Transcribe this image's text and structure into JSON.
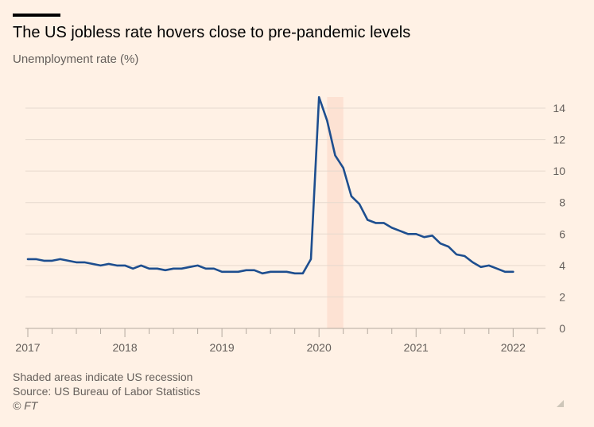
{
  "header": {
    "title": "The US jobless rate hovers close to pre-pandemic levels",
    "subtitle": "Unemployment rate (%)"
  },
  "footer": {
    "note": "Shaded areas indicate US recession",
    "source": "Source: US Bureau of Labor Statistics",
    "credit": "© FT"
  },
  "chart_data": {
    "type": "line",
    "title": "The US jobless rate hovers close to pre-pandemic levels",
    "subtitle": "Unemployment rate (%)",
    "xlabel": "",
    "ylabel": "Unemployment rate (%)",
    "ylim": [
      0,
      14.5
    ],
    "y_ticks": [
      0,
      2,
      4,
      6,
      8,
      10,
      12,
      14
    ],
    "y_axis_side": "right",
    "x_ticks": [
      "2017",
      "2018",
      "2019",
      "2020",
      "2021",
      "2022"
    ],
    "grid": true,
    "colors": {
      "line": "#1d4e8f",
      "recession": "#fde2d3",
      "background": "#fff1e5",
      "grid": "#e6d9ce"
    },
    "recession": {
      "start": "2020-02",
      "end": "2020-04"
    },
    "series": [
      {
        "x_start": "2017-01",
        "frequency": "monthly",
        "values": [
          4.4,
          4.4,
          4.3,
          4.3,
          4.4,
          4.3,
          4.2,
          4.2,
          4.1,
          4.0,
          4.1,
          4.0,
          4.0,
          3.8,
          4.0,
          3.8,
          3.8,
          3.7,
          3.8,
          3.8,
          3.9,
          4.0,
          3.8,
          3.8,
          3.6,
          3.6,
          3.6,
          3.7,
          3.7,
          3.5,
          3.6,
          3.6,
          3.6,
          3.5,
          3.5,
          4.4,
          14.7,
          13.2,
          11.0,
          10.2,
          8.4,
          7.9,
          6.9,
          6.7,
          6.7,
          6.4,
          6.2,
          6.0,
          6.0,
          5.8,
          5.9,
          5.4,
          5.2,
          4.7,
          4.6,
          4.2,
          3.9,
          4.0,
          3.8,
          3.6,
          3.6
        ]
      }
    ]
  }
}
